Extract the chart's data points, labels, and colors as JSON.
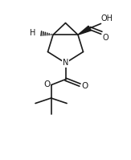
{
  "bg_color": "#ffffff",
  "line_color": "#1a1a1a",
  "lw": 1.2,
  "fig_width": 1.63,
  "fig_height": 1.99,
  "dpi": 100,
  "xlim": [
    0,
    10
  ],
  "ylim": [
    0,
    12.2
  ]
}
